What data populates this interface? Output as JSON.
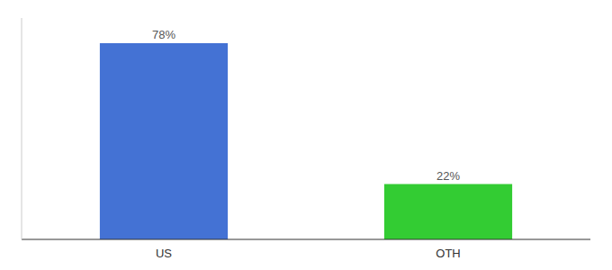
{
  "chart_data": {
    "type": "bar",
    "categories": [
      "US",
      "OTH"
    ],
    "values": [
      78,
      22
    ],
    "value_labels": [
      "78%",
      "22%"
    ],
    "colors": [
      "#4472d4",
      "#33cc33"
    ],
    "ylim": [
      0,
      88
    ],
    "data_labels": true,
    "tick_labels": "x"
  }
}
